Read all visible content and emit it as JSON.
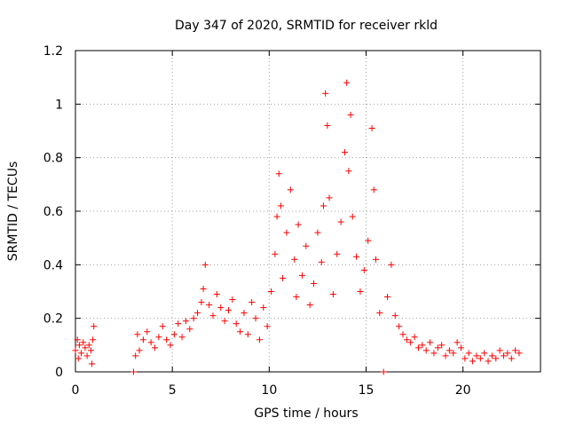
{
  "chart_data": {
    "type": "scatter",
    "title": "Day 347 of 2020, SRMTID for receiver rkld",
    "xlabel": "GPS time / hours",
    "ylabel": "SRMTID / TECUs",
    "xlim": [
      0,
      24
    ],
    "ylim": [
      0,
      1.2
    ],
    "x_ticks": [
      0,
      5,
      10,
      15,
      20
    ],
    "x_tick_labels": [
      "0",
      "5",
      "10",
      "15",
      "20"
    ],
    "y_ticks": [
      0,
      0.2,
      0.4,
      0.6,
      0.8,
      1,
      1.2
    ],
    "y_tick_labels": [
      "0",
      "0.2",
      "0.4",
      "0.6",
      "0.8",
      "1",
      "1.2"
    ],
    "grid": true,
    "marker": "+",
    "series": [
      {
        "name": "SRMTID",
        "color": "#ff0000",
        "x": [
          0.0,
          0.1,
          0.15,
          0.2,
          0.3,
          0.4,
          0.5,
          0.6,
          0.7,
          0.8,
          0.85,
          0.9,
          0.95,
          3.0,
          3.1,
          3.2,
          3.3,
          3.5,
          3.7,
          3.9,
          4.1,
          4.3,
          4.5,
          4.7,
          4.9,
          5.1,
          5.3,
          5.5,
          5.7,
          5.9,
          6.1,
          6.3,
          6.5,
          6.6,
          6.7,
          6.9,
          7.1,
          7.3,
          7.5,
          7.7,
          7.9,
          8.1,
          8.3,
          8.5,
          8.7,
          8.9,
          9.1,
          9.3,
          9.5,
          9.7,
          9.9,
          10.1,
          10.3,
          10.4,
          10.5,
          10.6,
          10.7,
          10.9,
          11.1,
          11.3,
          11.4,
          11.5,
          11.7,
          11.9,
          12.1,
          12.3,
          12.5,
          12.7,
          12.8,
          12.9,
          13.0,
          13.1,
          13.3,
          13.5,
          13.7,
          13.9,
          14.0,
          14.1,
          14.2,
          14.3,
          14.5,
          14.7,
          14.9,
          15.1,
          15.3,
          15.4,
          15.5,
          15.7,
          15.9,
          16.1,
          16.3,
          16.5,
          16.7,
          16.9,
          17.1,
          17.3,
          17.5,
          17.7,
          17.9,
          18.1,
          18.3,
          18.5,
          18.7,
          18.9,
          19.1,
          19.3,
          19.5,
          19.7,
          19.9,
          20.1,
          20.3,
          20.5,
          20.7,
          20.9,
          21.1,
          21.3,
          21.5,
          21.7,
          21.9,
          22.1,
          22.3,
          22.5,
          22.7,
          22.9
        ],
        "y": [
          0.08,
          0.12,
          0.05,
          0.1,
          0.07,
          0.11,
          0.09,
          0.06,
          0.1,
          0.08,
          0.03,
          0.12,
          0.17,
          0.0,
          0.06,
          0.14,
          0.08,
          0.12,
          0.15,
          0.11,
          0.09,
          0.13,
          0.17,
          0.12,
          0.1,
          0.14,
          0.18,
          0.13,
          0.19,
          0.16,
          0.2,
          0.22,
          0.26,
          0.31,
          0.4,
          0.25,
          0.21,
          0.29,
          0.24,
          0.19,
          0.23,
          0.27,
          0.18,
          0.15,
          0.22,
          0.14,
          0.26,
          0.2,
          0.12,
          0.24,
          0.17,
          0.3,
          0.44,
          0.58,
          0.74,
          0.62,
          0.35,
          0.52,
          0.68,
          0.42,
          0.28,
          0.55,
          0.36,
          0.47,
          0.25,
          0.33,
          0.52,
          0.41,
          0.62,
          1.04,
          0.92,
          0.65,
          0.29,
          0.44,
          0.56,
          0.82,
          1.08,
          0.75,
          0.96,
          0.58,
          0.43,
          0.3,
          0.38,
          0.49,
          0.91,
          0.68,
          0.42,
          0.22,
          0.0,
          0.28,
          0.4,
          0.21,
          0.17,
          0.14,
          0.12,
          0.11,
          0.13,
          0.09,
          0.1,
          0.08,
          0.11,
          0.07,
          0.09,
          0.1,
          0.06,
          0.08,
          0.07,
          0.11,
          0.09,
          0.05,
          0.07,
          0.04,
          0.06,
          0.05,
          0.07,
          0.04,
          0.06,
          0.05,
          0.08,
          0.06,
          0.07,
          0.05,
          0.08,
          0.07
        ]
      }
    ]
  }
}
